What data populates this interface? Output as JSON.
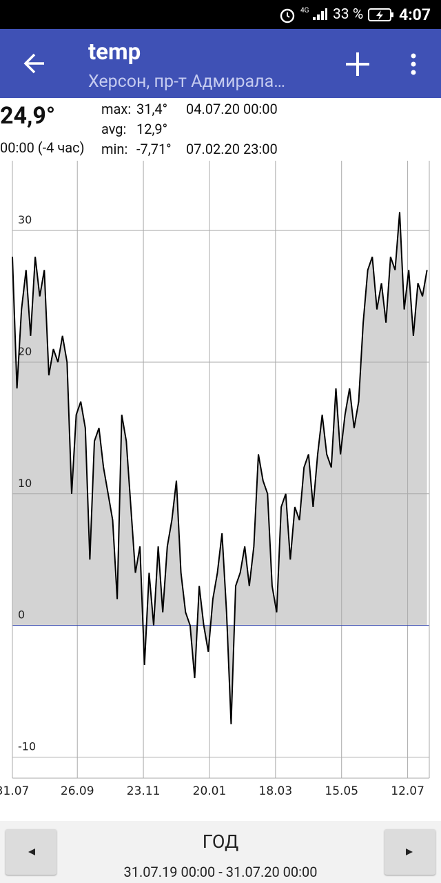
{
  "status_bar": {
    "network": "4G",
    "battery": "33 %",
    "time": "4:07"
  },
  "app_bar": {
    "title": "temp",
    "subtitle": "Херсон, пр-т Адмирала…"
  },
  "stats": {
    "current": "24,9°",
    "current_time": "00:00 (-4 час)",
    "max_label": "max:",
    "max_value": "31,4°",
    "max_time": "04.07.20 00:00",
    "avg_label": "avg:",
    "avg_value": "12,9°",
    "min_label": "min:",
    "min_value": "-7,71°",
    "min_time": "07.02.20 23:00"
  },
  "chart_data": {
    "type": "area",
    "x": [
      0,
      4,
      8,
      12,
      16,
      20,
      24,
      28,
      32,
      36,
      40,
      44,
      48,
      52,
      56,
      60,
      64,
      68,
      72,
      76,
      80,
      84,
      88,
      92,
      96,
      100,
      104,
      108,
      112,
      116,
      120,
      124,
      128,
      132,
      136,
      140,
      144,
      148,
      152,
      156,
      160,
      164,
      168,
      172,
      176,
      180,
      184,
      188,
      192,
      196,
      200,
      204,
      208,
      212,
      216,
      220,
      224,
      228,
      232,
      236,
      240,
      244,
      248,
      252,
      256,
      260,
      264,
      268,
      272,
      276,
      280,
      284,
      288,
      292,
      296,
      300,
      304,
      308,
      312,
      316,
      320,
      324,
      328,
      332,
      336,
      340,
      344,
      348,
      352,
      356,
      360,
      364
    ],
    "values": [
      28,
      18,
      24,
      27,
      22,
      28,
      25,
      27,
      19,
      21,
      20,
      22,
      20,
      10,
      16,
      17,
      15,
      5,
      14,
      15,
      12,
      10,
      8,
      2,
      16,
      14,
      9,
      4,
      6,
      -3,
      4,
      0,
      6,
      1,
      6,
      8,
      11,
      4,
      1,
      0,
      -4,
      3,
      0,
      -2,
      2,
      4,
      7,
      1,
      -7.5,
      3,
      4,
      6,
      3,
      6,
      13,
      11,
      10,
      3,
      1,
      9,
      10,
      5,
      9,
      8,
      12,
      13,
      9,
      13,
      16,
      13,
      12,
      18,
      13,
      16,
      18,
      15,
      17,
      23,
      27,
      28,
      24,
      26,
      23,
      28,
      27,
      31.4,
      24,
      27,
      22,
      26,
      25,
      27
    ],
    "color": "#000000",
    "fill_color": "#d3d3d3",
    "zero_line_color": "#3f51b5",
    "grid": true,
    "xlim": [
      0,
      366
    ],
    "xticks": [
      {
        "value": 0,
        "label": "31.07"
      },
      {
        "value": 57,
        "label": "26.09"
      },
      {
        "value": 115,
        "label": "23.11"
      },
      {
        "value": 173,
        "label": "20.01"
      },
      {
        "value": 231,
        "label": "18.03"
      },
      {
        "value": 289,
        "label": "15.05"
      },
      {
        "value": 347,
        "label": "12.07"
      }
    ],
    "ylim": [
      -11.6,
      35.3
    ],
    "yticks": [
      -10,
      0,
      10,
      20,
      30
    ]
  },
  "footer": {
    "period": "ГОД",
    "range": "31.07.19 00:00 - 31.07.20 00:00"
  }
}
